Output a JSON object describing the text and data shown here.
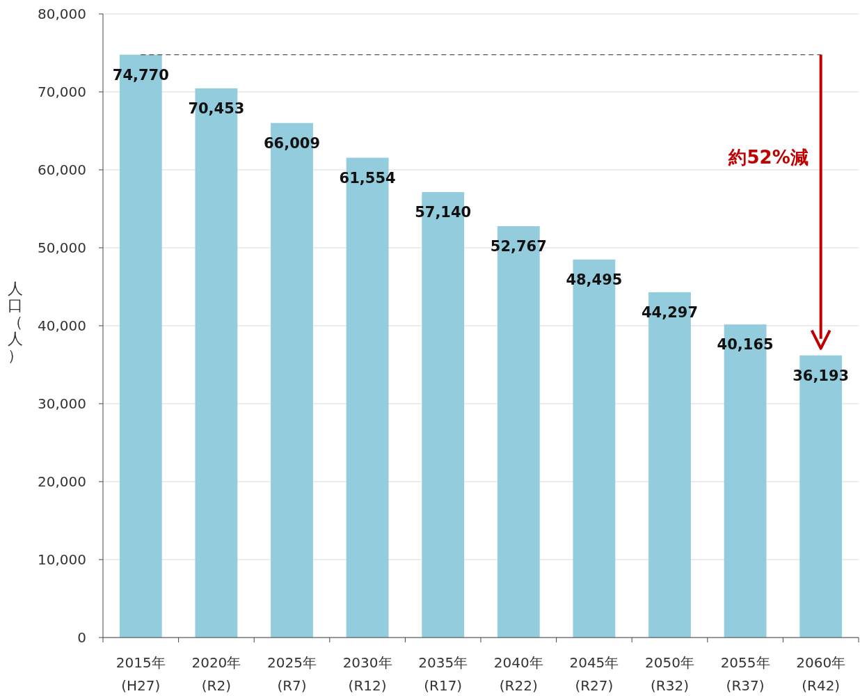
{
  "chart_data": {
    "type": "bar",
    "ylabel": "人口（人）",
    "categories": [
      "2015年\n(H27)",
      "2020年\n(R2)",
      "2025年\n(R7)",
      "2030年\n(R12)",
      "2035年\n(R17)",
      "2040年\n(R22)",
      "2045年\n(R27)",
      "2050年\n(R32)",
      "2055年\n(R37)",
      "2060年\n(R42)"
    ],
    "values": [
      74770,
      70453,
      66009,
      61554,
      57140,
      52767,
      48495,
      44297,
      40165,
      36193
    ],
    "value_labels": [
      "74,770",
      "70,453",
      "66,009",
      "61,554",
      "57,140",
      "52,767",
      "48,495",
      "44,297",
      "40,165",
      "36,193"
    ],
    "color": "#93cddd",
    "ylim": [
      0,
      80000
    ],
    "yticks": [
      0,
      {
        "value": 10000,
        "label": "10,000"
      },
      {
        "value": 20000,
        "label": "20,000"
      },
      {
        "value": 30000,
        "label": "30,000"
      },
      {
        "value": 40000,
        "label": "40,000"
      },
      {
        "value": 50000,
        "label": "50,000"
      },
      {
        "value": 60000,
        "label": "60,000"
      },
      {
        "value": 70000,
        "label": "70,000"
      },
      {
        "value": 80000,
        "label": "80,000"
      }
    ],
    "grid": "y",
    "ref_lines": [
      {
        "axis": "y",
        "value": 74770,
        "color": "#555555",
        "line_style": "dashed"
      }
    ],
    "annotations": [
      "約52%減"
    ]
  }
}
